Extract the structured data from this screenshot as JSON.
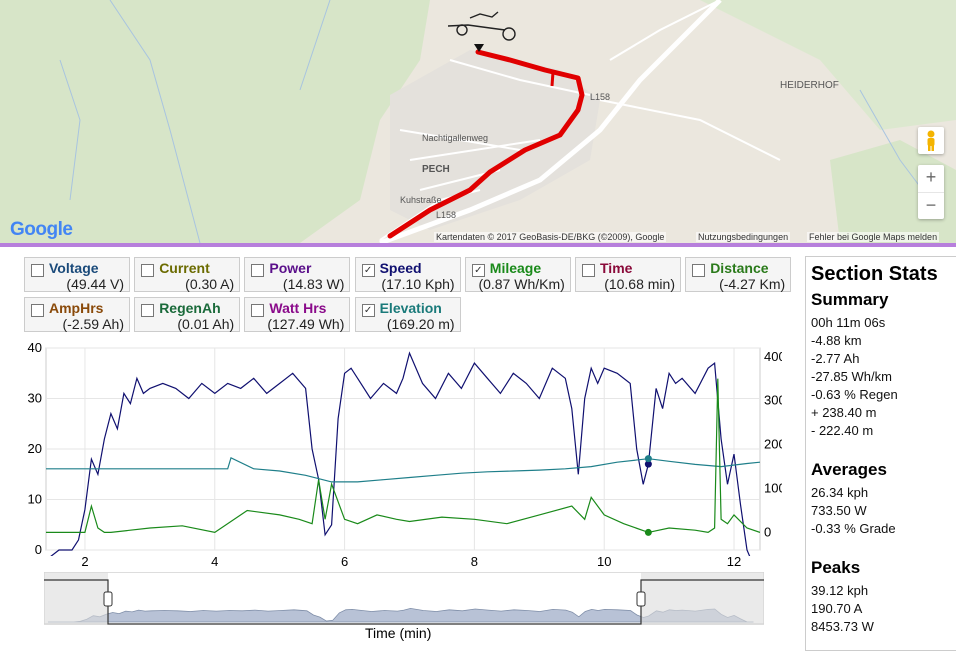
{
  "map": {
    "labels": {
      "heiderhof": "HEIDERHOF",
      "pech": "PECH",
      "nachtigallenweg": "Nachtigallenweg",
      "kuhstrasse": "Kuhstraße",
      "l158_a": "L158",
      "l158_b": "L158"
    },
    "google_logo": "Google",
    "attribution": "Kartendaten © 2017 GeoBasis-DE/BKG (©2009), Google",
    "terms": "Nutzungsbedingungen",
    "report": "Fehler bei Google Maps melden",
    "zoom_in": "+",
    "zoom_out": "−",
    "route_color": "#e00000"
  },
  "series": [
    {
      "label": "Voltage",
      "value": "(49.44 V)",
      "checked": false,
      "color": "#1a4a7a"
    },
    {
      "label": "Current",
      "value": "(0.30 A)",
      "checked": false,
      "color": "#6b6b00"
    },
    {
      "label": "Power",
      "value": "(14.83 W)",
      "checked": false,
      "color": "#5a0f8a"
    },
    {
      "label": "Speed",
      "value": "(17.10 Kph)",
      "checked": true,
      "color": "#101070"
    },
    {
      "label": "Mileage",
      "value": "(0.87 Wh/Km)",
      "checked": true,
      "color": "#1a8a1a"
    },
    {
      "label": "Time",
      "value": "(10.68 min)",
      "checked": false,
      "color": "#8a0a3a"
    },
    {
      "label": "Distance",
      "value": "(-4.27 Km)",
      "checked": false,
      "color": "#2a7a1a"
    },
    {
      "label": "AmpHrs",
      "value": "(-2.59 Ah)",
      "checked": false,
      "color": "#8a4a0a"
    },
    {
      "label": "RegenAh",
      "value": "(0.01 Ah)",
      "checked": false,
      "color": "#1a6a3a"
    },
    {
      "label": "Watt Hrs",
      "value": "(127.49 Wh)",
      "checked": false,
      "color": "#8a0a8a"
    },
    {
      "label": "Elevation",
      "value": "(169.20 m)",
      "checked": true,
      "color": "#1a7a7a"
    }
  ],
  "stats": {
    "title": "Section Stats",
    "summary_title": "Summary",
    "summary": [
      "00h 11m 06s",
      "-4.88 km",
      "-2.77 Ah",
      "-27.85 Wh/km",
      "-0.63 % Regen",
      "+ 238.40 m",
      "- 222.40 m"
    ],
    "averages_title": "Averages",
    "averages": [
      "26.34 kph",
      "733.50 W",
      "-0.33 % Grade"
    ],
    "peaks_title": "Peaks",
    "peaks": [
      "39.12 kph",
      "190.70 A",
      "8453.73 W"
    ]
  },
  "chart_data": {
    "type": "line",
    "xlabel": "Time (min)",
    "xlim": [
      1.4,
      12.4
    ],
    "xticks": [
      2,
      4,
      6,
      8,
      10,
      12
    ],
    "ylim_left": [
      0,
      40
    ],
    "yticks_left": [
      0,
      10,
      20,
      30,
      40
    ],
    "ylim_right": [
      -40,
      420
    ],
    "yticks_right": [
      0,
      100,
      200,
      300,
      400
    ],
    "cursor_x": 10.68,
    "series": [
      {
        "name": "Speed",
        "axis": "left",
        "color": "#101070",
        "x": [
          1.4,
          1.6,
          1.8,
          1.9,
          2.0,
          2.1,
          2.2,
          2.3,
          2.4,
          2.5,
          2.6,
          2.7,
          2.8,
          2.9,
          3.0,
          3.2,
          3.4,
          3.6,
          3.8,
          4.0,
          4.2,
          4.4,
          4.6,
          4.8,
          5.0,
          5.2,
          5.4,
          5.5,
          5.6,
          5.7,
          5.8,
          5.9,
          6.0,
          6.1,
          6.2,
          6.4,
          6.6,
          6.8,
          6.9,
          7.0,
          7.2,
          7.4,
          7.6,
          7.8,
          8.0,
          8.2,
          8.4,
          8.6,
          8.8,
          9.0,
          9.2,
          9.4,
          9.5,
          9.6,
          9.7,
          9.8,
          9.9,
          10.0,
          10.2,
          10.4,
          10.5,
          10.6,
          10.68,
          10.8,
          10.9,
          11.0,
          11.1,
          11.2,
          11.4,
          11.6,
          11.7,
          11.8,
          11.9,
          12.0,
          12.1,
          12.2,
          12.3
        ],
        "y": [
          -2,
          0,
          0,
          2,
          8,
          18,
          15,
          22,
          27,
          24,
          31,
          29,
          34,
          31,
          32,
          33,
          32,
          30,
          33,
          31,
          33,
          32,
          34,
          31,
          33,
          35,
          32,
          20,
          14,
          3,
          5,
          26,
          35,
          36,
          34,
          30,
          33,
          31,
          34,
          39,
          33,
          30,
          35,
          32,
          37,
          34,
          31,
          35,
          33,
          30,
          36,
          34,
          28,
          15,
          30,
          36,
          33,
          36,
          35,
          33,
          20,
          13,
          17,
          32,
          28,
          35,
          33,
          34,
          31,
          36,
          37,
          22,
          13,
          19,
          9,
          0,
          -3
        ]
      },
      {
        "name": "Elevation",
        "axis": "right",
        "color": "#1f7f8a",
        "x": [
          1.4,
          2.5,
          3.5,
          4.2,
          4.25,
          4.6,
          5.0,
          5.4,
          5.8,
          6.0,
          6.2,
          6.6,
          7.0,
          7.4,
          7.8,
          8.2,
          8.6,
          9.0,
          9.4,
          9.8,
          10.2,
          10.68,
          11.0,
          11.4,
          11.8,
          12.2,
          12.4
        ],
        "y": [
          145,
          145,
          145,
          145,
          170,
          145,
          140,
          130,
          115,
          115,
          115,
          120,
          125,
          130,
          135,
          138,
          140,
          142,
          145,
          150,
          160,
          168,
          162,
          155,
          150,
          157,
          160
        ]
      },
      {
        "name": "Mileage",
        "axis": "right",
        "color": "#1a8a1a",
        "x": [
          1.4,
          2.0,
          2.1,
          2.2,
          2.3,
          2.4,
          3.0,
          3.5,
          4.0,
          4.5,
          5.0,
          5.3,
          5.5,
          5.6,
          5.7,
          5.8,
          6.0,
          6.2,
          6.5,
          6.8,
          7.0,
          7.5,
          8.0,
          8.5,
          9.0,
          9.5,
          9.7,
          9.8,
          10.0,
          10.3,
          10.68,
          11.0,
          11.4,
          11.6,
          11.7,
          11.75,
          11.8,
          11.9,
          12.0,
          12.2,
          12.4
        ],
        "y": [
          0,
          0,
          60,
          10,
          0,
          0,
          10,
          15,
          0,
          50,
          40,
          30,
          20,
          120,
          30,
          110,
          30,
          20,
          40,
          30,
          25,
          35,
          30,
          20,
          40,
          60,
          30,
          80,
          40,
          20,
          0,
          10,
          5,
          0,
          10,
          350,
          30,
          20,
          40,
          10,
          0
        ]
      }
    ],
    "overview_x_range_selected": [
      10.02,
      1.98
    ]
  }
}
